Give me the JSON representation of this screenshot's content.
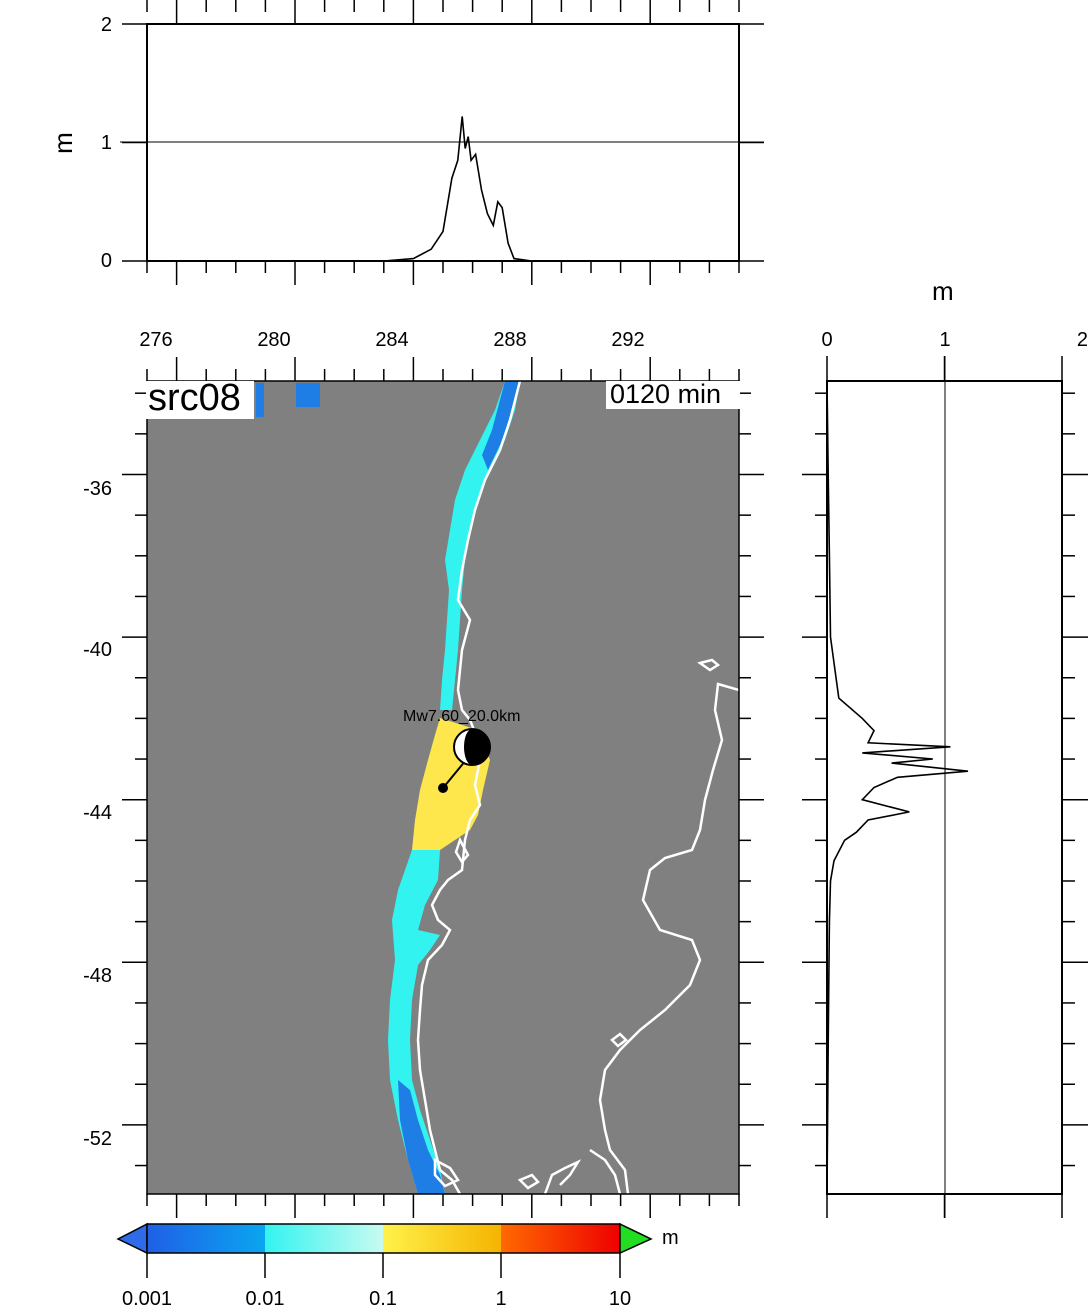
{
  "map": {
    "source_label": "src08",
    "time_label": "0120 min",
    "x_ticks": [
      "276",
      "280",
      "284",
      "288",
      "292"
    ],
    "y_ticks": [
      "-36",
      "-40",
      "-44",
      "-48",
      "-52"
    ],
    "x_range": [
      275,
      295
    ],
    "y_range": [
      -33.7,
      -53.7
    ],
    "ocean_color": "#808080",
    "coast_color": "#ffffff"
  },
  "earthquake": {
    "label": "Mw7.60_20.0km",
    "epicenter": {
      "lon": 285.7,
      "lat": -43.4
    },
    "mechanism": "focal-mechanism-beachball"
  },
  "top_profile": {
    "ylabel": "m",
    "y_ticks": [
      "0",
      "1",
      "2"
    ],
    "y_range": [
      0,
      2
    ],
    "reference_line": 1,
    "x_range": [
      275,
      295
    ]
  },
  "side_profile": {
    "xlabel": "m",
    "x_ticks": [
      "0",
      "1",
      "2"
    ],
    "x_range": [
      0,
      2
    ],
    "reference_line": 1,
    "y_range": [
      -33.7,
      -53.7
    ]
  },
  "colorbar": {
    "ticks": [
      "0.001",
      "0.01",
      "0.1",
      "1",
      "10"
    ],
    "unit": "m",
    "colors": [
      "#1f5fe6",
      "#0aa6f0",
      "#33f3f0",
      "#c8fbf0",
      "#fff24a",
      "#f5b400",
      "#ff6a00",
      "#ee0000"
    ],
    "under_color": "#2f6ae8",
    "over_color": "#22dd22"
  },
  "chart_data": [
    {
      "type": "line",
      "title": "",
      "xlabel": "",
      "ylabel": "m",
      "xlim": [
        275,
        295
      ],
      "ylim": [
        0,
        2
      ],
      "x": [
        275,
        283,
        284,
        284.6,
        285,
        285.3,
        285.5,
        285.65,
        285.75,
        285.85,
        285.95,
        286.1,
        286.3,
        286.5,
        286.7,
        286.85,
        287,
        287.2,
        287.4,
        288,
        295
      ],
      "y": [
        0,
        0,
        0.02,
        0.1,
        0.25,
        0.7,
        0.85,
        1.22,
        0.95,
        1.05,
        0.85,
        0.9,
        0.6,
        0.4,
        0.3,
        0.5,
        0.45,
        0.15,
        0.02,
        0,
        0
      ]
    },
    {
      "type": "line",
      "title": "",
      "xlabel": "m",
      "ylabel": "",
      "xlim": [
        0,
        2
      ],
      "ylim": [
        -53.7,
        -33.7
      ],
      "y": [
        -33.7,
        -36,
        -38,
        -40,
        -41.5,
        -42,
        -42.3,
        -42.6,
        -42.7,
        -42.85,
        -43,
        -43.1,
        -43.3,
        -43.45,
        -43.7,
        -44,
        -44.3,
        -44.5,
        -44.8,
        -45,
        -45.5,
        -46,
        -47,
        -50,
        -53.7
      ],
      "x": [
        0,
        0.01,
        0.02,
        0.03,
        0.1,
        0.3,
        0.4,
        0.35,
        1.05,
        0.3,
        0.9,
        0.55,
        1.2,
        0.6,
        0.4,
        0.3,
        0.7,
        0.35,
        0.25,
        0.15,
        0.06,
        0.03,
        0.02,
        0.01,
        0
      ]
    }
  ]
}
